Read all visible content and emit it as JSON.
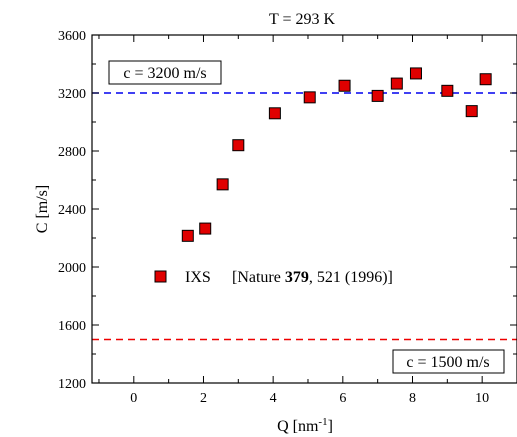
{
  "chart_data": {
    "type": "scatter",
    "title": "T = 293 K",
    "xlabel": "Q [nm",
    "xlabel_sup": "-1",
    "xlabel_end": "]",
    "ylabel": "C [m/s]",
    "xlim": [
      -1.2,
      11.0
    ],
    "ylim": [
      1200,
      3600
    ],
    "xticks": [
      0,
      2,
      4,
      6,
      8,
      10
    ],
    "xtick_labels": [
      "0",
      "2",
      "4",
      "6",
      "8",
      "10"
    ],
    "yticks": [
      1200,
      1600,
      2000,
      2400,
      2800,
      3200,
      3600
    ],
    "ytick_labels": [
      "1200",
      "1600",
      "2000",
      "2400",
      "2800",
      "3200",
      "3600"
    ],
    "grid": false,
    "series": [
      {
        "name": "IXS",
        "color": "#e00000",
        "marker": "square",
        "x": [
          1.55,
          2.05,
          2.55,
          3.0,
          4.05,
          5.05,
          6.05,
          7.0,
          7.55,
          8.1,
          9.0,
          9.7,
          10.1
        ],
        "y": [
          2215,
          2265,
          2570,
          2840,
          3060,
          3170,
          3250,
          3180,
          3265,
          3335,
          3215,
          3075,
          3295
        ]
      }
    ],
    "reference_lines": [
      {
        "y": 3200,
        "color": "#0000ee",
        "label": "c = 3200 m/s"
      },
      {
        "y": 1500,
        "color": "#ee0000",
        "label": "c = 1500 m/s"
      }
    ],
    "legend": {
      "name": "IXS",
      "ref_prefix": "[Nature ",
      "ref_bold": "379",
      "ref_suffix": ", 521 (1996)]"
    }
  }
}
